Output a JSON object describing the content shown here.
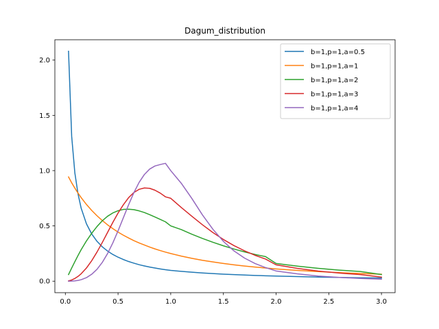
{
  "chart_data": {
    "type": "line",
    "title": "Dagum_distribution",
    "xlabel": "",
    "ylabel": "",
    "xlim": [
      -0.0995,
      3.1295
    ],
    "ylim": [
      -0.104,
      2.184
    ],
    "xticks": [
      0.0,
      0.5,
      1.0,
      1.5,
      2.0,
      2.5,
      3.0
    ],
    "xtick_labels": [
      "0.0",
      "0.5",
      "1.0",
      "1.5",
      "2.0",
      "2.5",
      "3.0"
    ],
    "yticks": [
      0.0,
      0.5,
      1.0,
      1.5,
      2.0
    ],
    "ytick_labels": [
      "0.0",
      "0.5",
      "1.0",
      "1.5",
      "2.0"
    ],
    "grid": false,
    "legend_position": "top-right",
    "x": [
      0.03,
      0.06,
      0.09,
      0.12,
      0.15,
      0.2,
      0.25,
      0.3,
      0.35,
      0.4,
      0.45,
      0.5,
      0.55,
      0.6,
      0.65,
      0.7,
      0.75,
      0.8,
      0.85,
      0.9,
      0.95,
      1.0,
      1.1,
      1.2,
      1.3,
      1.4,
      1.5,
      1.6,
      1.7,
      1.8,
      1.9,
      2.0,
      2.2,
      2.4,
      2.6,
      2.8,
      3.0
    ],
    "series": [
      {
        "name": "b=1,p=1,a=0.5",
        "color": "#1f77b4",
        "values": [
          2.08,
          1.31,
          0.98,
          0.79,
          0.66,
          0.519,
          0.427,
          0.361,
          0.311,
          0.273,
          0.242,
          0.217,
          0.196,
          0.178,
          0.163,
          0.149,
          0.138,
          0.128,
          0.119,
          0.111,
          0.104,
          0.0977,
          0.0887,
          0.081,
          0.0744,
          0.0687,
          0.0637,
          0.0593,
          0.0555,
          0.0521,
          0.049,
          0.0462,
          0.0414,
          0.0374,
          0.034,
          0.0312,
          0.0287
        ]
      },
      {
        "name": "b=1,p=1,a=1",
        "color": "#ff7f0e",
        "values": [
          0.943,
          0.89,
          0.842,
          0.797,
          0.756,
          0.694,
          0.64,
          0.592,
          0.549,
          0.51,
          0.476,
          0.444,
          0.416,
          0.391,
          0.367,
          0.346,
          0.327,
          0.309,
          0.292,
          0.277,
          0.263,
          0.25,
          0.227,
          0.207,
          0.189,
          0.174,
          0.16,
          0.148,
          0.137,
          0.128,
          0.119,
          0.111,
          0.0977,
          0.0865,
          0.0772,
          0.0693,
          0.0625
        ]
      },
      {
        "name": "b=1,p=1,a=2",
        "color": "#2ca02c",
        "values": [
          0.0599,
          0.119,
          0.176,
          0.232,
          0.285,
          0.364,
          0.433,
          0.494,
          0.546,
          0.587,
          0.617,
          0.637,
          0.649,
          0.651,
          0.647,
          0.636,
          0.621,
          0.602,
          0.581,
          0.559,
          0.537,
          0.5,
          0.467,
          0.425,
          0.387,
          0.352,
          0.32,
          0.291,
          0.265,
          0.242,
          0.222,
          0.16,
          0.136,
          0.116,
          0.1,
          0.0875,
          0.06
        ]
      },
      {
        "name": "b=1,p=1,a=3",
        "color": "#d62728",
        "values": [
          0.0027,
          0.0108,
          0.0243,
          0.0431,
          0.0672,
          0.119,
          0.185,
          0.263,
          0.349,
          0.44,
          0.531,
          0.616,
          0.691,
          0.755,
          0.802,
          0.831,
          0.843,
          0.84,
          0.823,
          0.797,
          0.763,
          0.75,
          0.667,
          0.588,
          0.511,
          0.44,
          0.377,
          0.322,
          0.275,
          0.234,
          0.2,
          0.148,
          0.116,
          0.0915,
          0.0733,
          0.0596,
          0.037
        ]
      },
      {
        "name": "b=1,p=1,a=4",
        "color": "#9467bd",
        "values": [
          0.0001,
          0.0009,
          0.0029,
          0.0069,
          0.0135,
          0.032,
          0.0624,
          0.107,
          0.169,
          0.249,
          0.345,
          0.455,
          0.573,
          0.691,
          0.8,
          0.894,
          0.965,
          1.014,
          1.042,
          1.055,
          1.066,
          1.0,
          0.886,
          0.749,
          0.601,
          0.47,
          0.36,
          0.274,
          0.209,
          0.16,
          0.123,
          0.0923,
          0.0663,
          0.0465,
          0.0337,
          0.025,
          0.018
        ]
      }
    ]
  }
}
